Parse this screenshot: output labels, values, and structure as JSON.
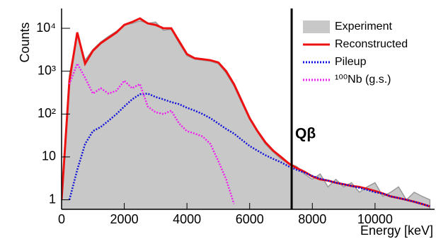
{
  "chart_data": {
    "type": "line",
    "xlabel": "Energy [keV]",
    "ylabel": "Counts",
    "xlim": [
      0,
      11900
    ],
    "ylim": [
      0.6,
      29000
    ],
    "ylog": true,
    "xticks": [
      0,
      2000,
      4000,
      6000,
      8000,
      10000
    ],
    "yticks": [
      1,
      10,
      {
        "value": 100,
        "label": "10²"
      },
      {
        "value": 1000,
        "label": "10³"
      },
      {
        "value": 10000,
        "label": "10⁴"
      }
    ],
    "legend": "top-right",
    "annotations": [
      {
        "text": "Qβ",
        "x": 7340
      }
    ],
    "x": [
      0,
      250,
      500,
      750,
      1000,
      1250,
      1500,
      1750,
      2000,
      2250,
      2500,
      2750,
      3000,
      3250,
      3500,
      3750,
      4000,
      4250,
      4500,
      4750,
      5000,
      5250,
      5500,
      5750,
      6000,
      6250,
      6500,
      6750,
      7000,
      7250,
      7500,
      7750,
      8000,
      8250,
      8500,
      8750,
      9000,
      9250,
      9500,
      9750,
      10000,
      10250,
      10500,
      10750,
      11000,
      11250,
      11500,
      11750
    ],
    "series": [
      {
        "name": "Experiment",
        "color": "#c8c8c8",
        "style": "area",
        "values": [
          1,
          800,
          8000,
          1800,
          3200,
          4800,
          6500,
          8500,
          12000,
          13000,
          15000,
          13000,
          14000,
          9000,
          9500,
          4500,
          2300,
          1900,
          1800,
          1700,
          1500,
          900,
          450,
          180,
          75,
          38,
          20,
          13,
          9,
          7,
          6,
          4,
          3,
          4,
          2,
          3,
          2,
          2.5,
          1.5,
          2,
          2.5,
          1.2,
          1.5,
          2,
          1,
          1.5,
          1.2,
          1
        ]
      },
      {
        "name": "Reconstructed",
        "color": "#ee1111",
        "style": "solid",
        "values": [
          1,
          600,
          8000,
          1500,
          3000,
          4500,
          6000,
          8000,
          12000,
          14000,
          17000,
          13000,
          12000,
          10000,
          10000,
          5000,
          2500,
          2000,
          1900,
          1800,
          1600,
          1000,
          500,
          200,
          80,
          40,
          22,
          14,
          10,
          7,
          5.5,
          4.5,
          3.5,
          3,
          2.8,
          2.5,
          2.3,
          2.1,
          2,
          1.8,
          1.6,
          1.4,
          1.2,
          1.1,
          1,
          0.9,
          0.8,
          0.7
        ]
      },
      {
        "name": "Pileup",
        "color": "#1111dd",
        "style": "dotted",
        "values": [
          null,
          1,
          5,
          20,
          40,
          50,
          70,
          100,
          150,
          220,
          290,
          300,
          250,
          220,
          190,
          170,
          140,
          120,
          100,
          80,
          60,
          45,
          35,
          25,
          18,
          14,
          11,
          9,
          7.5,
          6,
          5,
          4.3,
          3.6,
          3.1,
          2.8,
          2.5,
          2.3,
          2.1,
          1.9,
          1.7,
          1.5,
          1.4,
          1.2,
          1.1,
          1,
          0.9,
          0.8,
          0.7
        ]
      },
      {
        "name": "¹⁰⁰Nb (g.s.)",
        "color": "#ee22ee",
        "style": "dotted",
        "values": [
          null,
          500,
          1500,
          700,
          300,
          400,
          300,
          350,
          600,
          400,
          500,
          150,
          110,
          100,
          120,
          60,
          40,
          35,
          30,
          20,
          8,
          3,
          0.8,
          null,
          null,
          null,
          null,
          null,
          null,
          null,
          null,
          null,
          null,
          null,
          null,
          null,
          null,
          null,
          null,
          null,
          null,
          null,
          null,
          null,
          null,
          null,
          null,
          null
        ]
      }
    ]
  }
}
